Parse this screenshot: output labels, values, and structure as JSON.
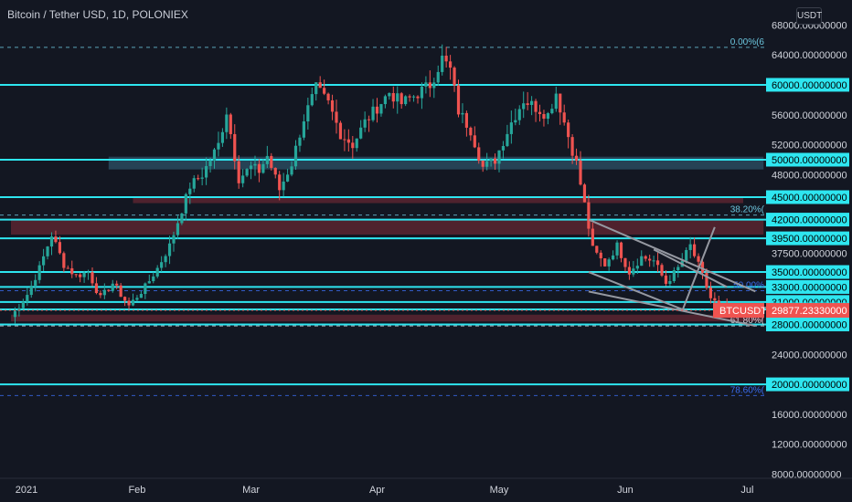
{
  "header": {
    "title": "Bitcoin / Tether USD, 1D, POLONIEX",
    "currency_badge": "USDT"
  },
  "chart_data": {
    "type": "candlestick",
    "symbol": "BTCUSDT",
    "last_price_label": "29877.23330000",
    "last_price": 29877.2333,
    "ylim": [
      7500,
      68000
    ],
    "y_ticks": [
      {
        "v": 68000,
        "label": "68000.00000000"
      },
      {
        "v": 64000,
        "label": "64000.00000000"
      },
      {
        "v": 60000,
        "label": "60000.00000000",
        "boxed": true
      },
      {
        "v": 56000,
        "label": "56000.00000000"
      },
      {
        "v": 52000,
        "label": "52000.00000000"
      },
      {
        "v": 50000,
        "label": "50000.00000000",
        "boxed": true
      },
      {
        "v": 48000,
        "label": "48000.00000000"
      },
      {
        "v": 45000,
        "label": "45000.00000000",
        "boxed": true
      },
      {
        "v": 42000,
        "label": "42000.00000000",
        "boxed": true
      },
      {
        "v": 39500,
        "label": "39500.00000000",
        "boxed": true
      },
      {
        "v": 37500,
        "label": "37500.00000000"
      },
      {
        "v": 35000,
        "label": "35000.00000000",
        "boxed": true
      },
      {
        "v": 33000,
        "label": "33000.00000000",
        "boxed": true
      },
      {
        "v": 31000,
        "label": "31000.00000000",
        "boxed": true
      },
      {
        "v": 30000,
        "label": "30000.00000000",
        "boxed": true
      },
      {
        "v": 28000,
        "label": "28000.00000000",
        "boxed": true
      },
      {
        "v": 24000,
        "label": "24000.00000000"
      },
      {
        "v": 20000,
        "label": "20000.00000000",
        "boxed": true
      },
      {
        "v": 16000,
        "label": "16000.00000000"
      },
      {
        "v": 12000,
        "label": "12000.00000000"
      },
      {
        "v": 8000,
        "label": "8000.00000000"
      }
    ],
    "x_ticks": [
      {
        "day": 0,
        "label": "2021"
      },
      {
        "day": 31,
        "label": "Feb"
      },
      {
        "day": 59,
        "label": "Mar"
      },
      {
        "day": 90,
        "label": "Apr"
      },
      {
        "day": 120,
        "label": "May"
      },
      {
        "day": 151,
        "label": "Jun"
      },
      {
        "day": 181,
        "label": "Jul"
      }
    ],
    "horizontal_levels": [
      60000,
      50000,
      45000,
      42000,
      39500,
      35000,
      33000,
      31000,
      30000,
      28000,
      20000
    ],
    "zones": [
      {
        "from": 48700,
        "to": 50400,
        "start_day": 24,
        "end_day": 185,
        "color": "#2a4a5e"
      },
      {
        "from": 44200,
        "to": 45100,
        "start_day": 30,
        "end_day": 180,
        "color": "#5a2530"
      },
      {
        "from": 40000,
        "to": 42000,
        "start_day": 0,
        "end_day": 185,
        "color": "#5a2530"
      },
      {
        "from": 28400,
        "to": 29300,
        "start_day": 0,
        "end_day": 185,
        "color": "#5a2530"
      }
    ],
    "fib_levels": [
      {
        "v": 65000,
        "label": "0.00%(6",
        "color": "#6cc6de"
      },
      {
        "v": 42600,
        "label": "38.20%(",
        "color": "#6cc6de"
      },
      {
        "v": 32500,
        "label": "50.00%",
        "color": "#3a6df0"
      },
      {
        "v": 27800,
        "label": "61.80%(",
        "color": "#d1d4dc"
      },
      {
        "v": 18500,
        "label": "78.60%(",
        "color": "#3a6df0"
      }
    ],
    "trendlines": [
      {
        "d1": 142,
        "v1": 42000,
        "d2": 183,
        "v2": 32400
      },
      {
        "d1": 142,
        "v1": 32400,
        "d2": 183,
        "v2": 27800
      },
      {
        "d1": 165,
        "v1": 29800,
        "d2": 173,
        "v2": 41000
      },
      {
        "d1": 142,
        "v1": 35000,
        "d2": 166,
        "v2": 29800
      },
      {
        "d1": 158,
        "v1": 38000,
        "d2": 176,
        "v2": 33000
      }
    ],
    "ohlc_anchors": [
      [
        0,
        29000
      ],
      [
        4,
        32000
      ],
      [
        7,
        35500
      ],
      [
        10,
        40000
      ],
      [
        13,
        36000
      ],
      [
        16,
        34500
      ],
      [
        19,
        35000
      ],
      [
        22,
        31500
      ],
      [
        25,
        33500
      ],
      [
        29,
        30500
      ],
      [
        33,
        33000
      ],
      [
        36,
        35500
      ],
      [
        39,
        38500
      ],
      [
        44,
        46500
      ],
      [
        47,
        48000
      ],
      [
        51,
        52000
      ],
      [
        53,
        56500
      ],
      [
        56,
        47500
      ],
      [
        59,
        49000
      ],
      [
        61,
        48500
      ],
      [
        63,
        50500
      ],
      [
        66,
        46000
      ],
      [
        69,
        49500
      ],
      [
        72,
        55500
      ],
      [
        75,
        59500
      ],
      [
        78,
        57500
      ],
      [
        81,
        53500
      ],
      [
        84,
        52000
      ],
      [
        87,
        55000
      ],
      [
        90,
        57000
      ],
      [
        93,
        59000
      ],
      [
        96,
        57500
      ],
      [
        99,
        58500
      ],
      [
        103,
        60000
      ],
      [
        106,
        63500
      ],
      [
        108,
        62000
      ],
      [
        110,
        56500
      ],
      [
        113,
        54000
      ],
      [
        116,
        49000
      ],
      [
        119,
        50000
      ],
      [
        123,
        55000
      ],
      [
        126,
        58000
      ],
      [
        129,
        57000
      ],
      [
        132,
        56000
      ],
      [
        134,
        59000
      ],
      [
        136,
        55000
      ],
      [
        139,
        49500
      ],
      [
        141,
        44000
      ],
      [
        143,
        38000
      ],
      [
        146,
        36000
      ],
      [
        149,
        38500
      ],
      [
        152,
        35000
      ],
      [
        155,
        37000
      ],
      [
        158,
        36500
      ],
      [
        161,
        33500
      ],
      [
        164,
        35500
      ],
      [
        167,
        38500
      ],
      [
        170,
        34500
      ],
      [
        172,
        31500
      ],
      [
        174,
        30500
      ],
      [
        176,
        29877
      ]
    ]
  }
}
